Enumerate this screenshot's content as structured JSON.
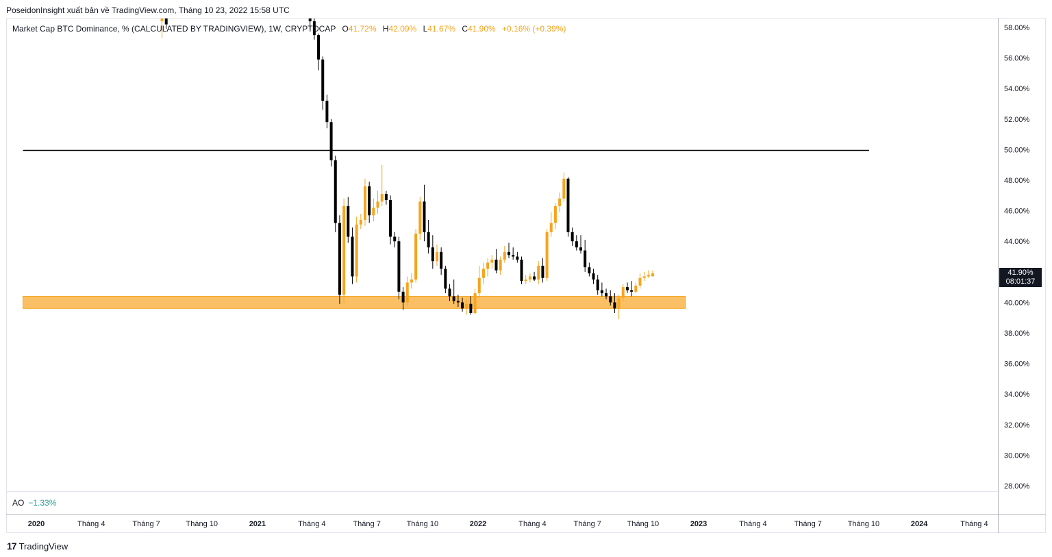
{
  "header": {
    "publisher": "PoseidonInsight xuất bản về TradingView.com, Tháng 10 23, 2022 15:58 UTC"
  },
  "legend": {
    "name": "Market Cap BTC Dominance, % (CALCULATED BY TRADINGVIEW), 1W, CRYPTOCAP",
    "o_label": "O",
    "o_value": "41.72%",
    "h_label": "H",
    "h_value": "42.09%",
    "l_label": "L",
    "l_value": "41.67%",
    "c_label": "C",
    "c_value": "41.90%",
    "change": "+0.16% (+0.39%)"
  },
  "indicator": {
    "name": "AO",
    "value": "−1.33%"
  },
  "price_tag": {
    "price": "41.90%",
    "countdown": "08:01:37"
  },
  "brand": {
    "logo": "17",
    "name": "TradingView"
  },
  "colors": {
    "up": "#f7a41e",
    "down": "#000000",
    "zone": "#fbc065",
    "line": "#000000"
  },
  "chart_data": {
    "type": "candlestick",
    "y_axis_labels": [
      "58.00%",
      "56.00%",
      "54.00%",
      "52.00%",
      "50.00%",
      "48.00%",
      "46.00%",
      "44.00%",
      "42.00%",
      "40.00%",
      "38.00%",
      "36.00%",
      "34.00%",
      "32.00%",
      "30.00%",
      "28.00%"
    ],
    "ylim": [
      27.6,
      58.8
    ],
    "x_axis_labels": [
      {
        "label": "2020",
        "bold": true,
        "date": "2020-01-01"
      },
      {
        "label": "Tháng 4",
        "bold": false,
        "date": "2020-04-01"
      },
      {
        "label": "Tháng 7",
        "bold": false,
        "date": "2020-07-01"
      },
      {
        "label": "Tháng 10",
        "bold": false,
        "date": "2020-10-01"
      },
      {
        "label": "2021",
        "bold": true,
        "date": "2021-01-01"
      },
      {
        "label": "Tháng 4",
        "bold": false,
        "date": "2021-04-01"
      },
      {
        "label": "Tháng 7",
        "bold": false,
        "date": "2021-07-01"
      },
      {
        "label": "Tháng 10",
        "bold": false,
        "date": "2021-10-01"
      },
      {
        "label": "2022",
        "bold": true,
        "date": "2022-01-01"
      },
      {
        "label": "Tháng 4",
        "bold": false,
        "date": "2022-04-01"
      },
      {
        "label": "Tháng 7",
        "bold": false,
        "date": "2022-07-01"
      },
      {
        "label": "Tháng 10",
        "bold": false,
        "date": "2022-10-01"
      },
      {
        "label": "2023",
        "bold": true,
        "date": "2023-01-01"
      },
      {
        "label": "Tháng 4",
        "bold": false,
        "date": "2023-04-01"
      },
      {
        "label": "Tháng 7",
        "bold": false,
        "date": "2023-07-01"
      },
      {
        "label": "Tháng 10",
        "bold": false,
        "date": "2023-10-01"
      },
      {
        "label": "2024",
        "bold": true,
        "date": "2024-01-01"
      },
      {
        "label": "Tháng 4",
        "bold": false,
        "date": "2024-04-01"
      }
    ],
    "horizontal_line": {
      "value": 49.95,
      "from": "2019-12-10",
      "to": "2023-10-10"
    },
    "support_zone": {
      "low": 39.6,
      "high": 40.4,
      "from": "2019-12-10",
      "to": "2022-12-10"
    },
    "candles": [
      {
        "date": "2020-07-27",
        "o": 58.4,
        "h": 58.8,
        "l": 57.3,
        "c": 58.6
      },
      {
        "date": "2020-08-03",
        "o": 58.6,
        "h": 58.8,
        "l": 57.9,
        "c": 58.2
      },
      {
        "date": "2021-03-29",
        "o": 58.8,
        "h": 58.8,
        "l": 57.9,
        "c": 58.4
      },
      {
        "date": "2021-04-05",
        "o": 58.4,
        "h": 58.6,
        "l": 57.2,
        "c": 57.5
      },
      {
        "date": "2021-04-12",
        "o": 57.5,
        "h": 57.6,
        "l": 55.2,
        "c": 55.9
      },
      {
        "date": "2021-04-19",
        "o": 55.9,
        "h": 56.1,
        "l": 52.6,
        "c": 53.2
      },
      {
        "date": "2021-04-26",
        "o": 53.2,
        "h": 53.6,
        "l": 51.4,
        "c": 51.8
      },
      {
        "date": "2021-05-03",
        "o": 51.8,
        "h": 52.0,
        "l": 48.9,
        "c": 49.3
      },
      {
        "date": "2021-05-10",
        "o": 49.3,
        "h": 49.6,
        "l": 44.6,
        "c": 45.2
      },
      {
        "date": "2021-05-17",
        "o": 45.2,
        "h": 45.7,
        "l": 39.9,
        "c": 40.5
      },
      {
        "date": "2021-05-24",
        "o": 40.5,
        "h": 46.8,
        "l": 39.9,
        "c": 46.3
      },
      {
        "date": "2021-05-31",
        "o": 46.3,
        "h": 46.9,
        "l": 43.9,
        "c": 44.3
      },
      {
        "date": "2021-06-07",
        "o": 44.3,
        "h": 44.9,
        "l": 41.2,
        "c": 41.7
      },
      {
        "date": "2021-06-14",
        "o": 41.7,
        "h": 45.6,
        "l": 41.3,
        "c": 45.1
      },
      {
        "date": "2021-06-21",
        "o": 45.1,
        "h": 45.8,
        "l": 44.8,
        "c": 45.4
      },
      {
        "date": "2021-06-28",
        "o": 45.4,
        "h": 48.1,
        "l": 45.0,
        "c": 47.6
      },
      {
        "date": "2021-07-05",
        "o": 47.6,
        "h": 47.9,
        "l": 45.2,
        "c": 45.7
      },
      {
        "date": "2021-07-12",
        "o": 45.7,
        "h": 46.8,
        "l": 45.3,
        "c": 46.2
      },
      {
        "date": "2021-07-19",
        "o": 46.2,
        "h": 47.3,
        "l": 45.8,
        "c": 46.6
      },
      {
        "date": "2021-07-26",
        "o": 46.6,
        "h": 49.0,
        "l": 46.3,
        "c": 47.1
      },
      {
        "date": "2021-08-02",
        "o": 47.1,
        "h": 47.3,
        "l": 46.4,
        "c": 46.7
      },
      {
        "date": "2021-08-09",
        "o": 46.7,
        "h": 47.0,
        "l": 43.8,
        "c": 44.3
      },
      {
        "date": "2021-08-16",
        "o": 44.3,
        "h": 44.6,
        "l": 43.6,
        "c": 44.0
      },
      {
        "date": "2021-08-23",
        "o": 44.0,
        "h": 44.3,
        "l": 40.2,
        "c": 40.7
      },
      {
        "date": "2021-08-30",
        "o": 40.7,
        "h": 41.0,
        "l": 39.5,
        "c": 40.0
      },
      {
        "date": "2021-09-06",
        "o": 40.0,
        "h": 41.7,
        "l": 39.8,
        "c": 41.3
      },
      {
        "date": "2021-09-13",
        "o": 41.3,
        "h": 41.9,
        "l": 40.9,
        "c": 41.5
      },
      {
        "date": "2021-09-20",
        "o": 41.5,
        "h": 44.8,
        "l": 41.3,
        "c": 44.5
      },
      {
        "date": "2021-09-27",
        "o": 44.5,
        "h": 46.9,
        "l": 44.1,
        "c": 46.6
      },
      {
        "date": "2021-10-04",
        "o": 46.6,
        "h": 47.7,
        "l": 44.0,
        "c": 44.6
      },
      {
        "date": "2021-10-11",
        "o": 44.6,
        "h": 45.4,
        "l": 43.2,
        "c": 43.6
      },
      {
        "date": "2021-10-18",
        "o": 43.6,
        "h": 44.4,
        "l": 42.2,
        "c": 42.7
      },
      {
        "date": "2021-10-25",
        "o": 42.7,
        "h": 43.8,
        "l": 42.4,
        "c": 43.3
      },
      {
        "date": "2021-11-01",
        "o": 43.3,
        "h": 43.6,
        "l": 41.8,
        "c": 42.2
      },
      {
        "date": "2021-11-08",
        "o": 42.2,
        "h": 42.4,
        "l": 40.6,
        "c": 40.9
      },
      {
        "date": "2021-11-15",
        "o": 40.9,
        "h": 41.2,
        "l": 40.1,
        "c": 40.4
      },
      {
        "date": "2021-11-22",
        "o": 40.4,
        "h": 41.5,
        "l": 39.9,
        "c": 40.1
      },
      {
        "date": "2021-11-29",
        "o": 40.1,
        "h": 40.5,
        "l": 39.7,
        "c": 40.0
      },
      {
        "date": "2021-12-06",
        "o": 40.0,
        "h": 40.3,
        "l": 39.4,
        "c": 39.6
      },
      {
        "date": "2021-12-13",
        "o": 39.6,
        "h": 40.2,
        "l": 39.2,
        "c": 39.9
      },
      {
        "date": "2021-12-20",
        "o": 39.9,
        "h": 40.4,
        "l": 39.2,
        "c": 39.3
      },
      {
        "date": "2021-12-27",
        "o": 39.3,
        "h": 40.9,
        "l": 39.2,
        "c": 40.6
      },
      {
        "date": "2022-01-03",
        "o": 40.6,
        "h": 42.4,
        "l": 40.3,
        "c": 41.6
      },
      {
        "date": "2022-01-10",
        "o": 41.6,
        "h": 42.6,
        "l": 41.2,
        "c": 42.2
      },
      {
        "date": "2022-01-17",
        "o": 42.2,
        "h": 42.9,
        "l": 41.7,
        "c": 42.6
      },
      {
        "date": "2022-01-24",
        "o": 42.6,
        "h": 43.1,
        "l": 42.2,
        "c": 42.8
      },
      {
        "date": "2022-01-31",
        "o": 42.8,
        "h": 43.5,
        "l": 41.9,
        "c": 42.1
      },
      {
        "date": "2022-02-07",
        "o": 42.1,
        "h": 43.0,
        "l": 41.8,
        "c": 42.8
      },
      {
        "date": "2022-02-14",
        "o": 42.8,
        "h": 43.7,
        "l": 42.6,
        "c": 43.3
      },
      {
        "date": "2022-02-21",
        "o": 43.3,
        "h": 43.9,
        "l": 42.9,
        "c": 43.1
      },
      {
        "date": "2022-02-28",
        "o": 43.1,
        "h": 43.6,
        "l": 42.8,
        "c": 43.0
      },
      {
        "date": "2022-03-07",
        "o": 43.0,
        "h": 43.3,
        "l": 42.6,
        "c": 42.8
      },
      {
        "date": "2022-03-14",
        "o": 42.8,
        "h": 43.0,
        "l": 41.2,
        "c": 41.4
      },
      {
        "date": "2022-03-21",
        "o": 41.4,
        "h": 41.8,
        "l": 41.2,
        "c": 41.5
      },
      {
        "date": "2022-03-28",
        "o": 41.5,
        "h": 41.9,
        "l": 41.3,
        "c": 41.7
      },
      {
        "date": "2022-04-04",
        "o": 41.7,
        "h": 42.0,
        "l": 41.4,
        "c": 41.5
      },
      {
        "date": "2022-04-11",
        "o": 41.5,
        "h": 42.7,
        "l": 41.2,
        "c": 42.4
      },
      {
        "date": "2022-04-18",
        "o": 42.4,
        "h": 42.9,
        "l": 41.3,
        "c": 41.6
      },
      {
        "date": "2022-04-25",
        "o": 41.6,
        "h": 44.8,
        "l": 41.4,
        "c": 44.6
      },
      {
        "date": "2022-05-02",
        "o": 44.6,
        "h": 45.9,
        "l": 44.3,
        "c": 45.2
      },
      {
        "date": "2022-05-09",
        "o": 45.2,
        "h": 46.5,
        "l": 44.8,
        "c": 46.3
      },
      {
        "date": "2022-05-16",
        "o": 46.3,
        "h": 47.2,
        "l": 45.9,
        "c": 46.8
      },
      {
        "date": "2022-05-23",
        "o": 46.8,
        "h": 48.5,
        "l": 46.6,
        "c": 48.1
      },
      {
        "date": "2022-05-30",
        "o": 48.1,
        "h": 48.2,
        "l": 44.3,
        "c": 44.6
      },
      {
        "date": "2022-06-06",
        "o": 44.6,
        "h": 44.9,
        "l": 43.7,
        "c": 44.0
      },
      {
        "date": "2022-06-13",
        "o": 44.0,
        "h": 44.4,
        "l": 43.4,
        "c": 43.6
      },
      {
        "date": "2022-06-20",
        "o": 43.6,
        "h": 44.4,
        "l": 43.2,
        "c": 43.4
      },
      {
        "date": "2022-06-27",
        "o": 43.4,
        "h": 44.1,
        "l": 42.0,
        "c": 42.3
      },
      {
        "date": "2022-07-04",
        "o": 42.3,
        "h": 42.6,
        "l": 41.7,
        "c": 41.9
      },
      {
        "date": "2022-07-11",
        "o": 41.9,
        "h": 42.2,
        "l": 41.2,
        "c": 41.5
      },
      {
        "date": "2022-07-18",
        "o": 41.5,
        "h": 41.8,
        "l": 40.5,
        "c": 40.8
      },
      {
        "date": "2022-07-25",
        "o": 40.8,
        "h": 41.3,
        "l": 40.4,
        "c": 40.6
      },
      {
        "date": "2022-08-01",
        "o": 40.6,
        "h": 40.9,
        "l": 40.2,
        "c": 40.4
      },
      {
        "date": "2022-08-08",
        "o": 40.4,
        "h": 40.8,
        "l": 39.8,
        "c": 40.0
      },
      {
        "date": "2022-08-15",
        "o": 40.0,
        "h": 40.6,
        "l": 39.3,
        "c": 39.6
      },
      {
        "date": "2022-08-22",
        "o": 39.6,
        "h": 40.5,
        "l": 38.9,
        "c": 40.3
      },
      {
        "date": "2022-08-29",
        "o": 40.3,
        "h": 41.2,
        "l": 40.1,
        "c": 41.0
      },
      {
        "date": "2022-09-05",
        "o": 41.0,
        "h": 41.3,
        "l": 40.6,
        "c": 40.8
      },
      {
        "date": "2022-09-12",
        "o": 40.8,
        "h": 41.4,
        "l": 40.4,
        "c": 40.7
      },
      {
        "date": "2022-09-19",
        "o": 40.7,
        "h": 41.3,
        "l": 40.6,
        "c": 41.1
      },
      {
        "date": "2022-09-26",
        "o": 41.1,
        "h": 41.9,
        "l": 40.9,
        "c": 41.6
      },
      {
        "date": "2022-10-03",
        "o": 41.6,
        "h": 42.0,
        "l": 41.4,
        "c": 41.7
      },
      {
        "date": "2022-10-10",
        "o": 41.7,
        "h": 42.1,
        "l": 41.6,
        "c": 41.8
      },
      {
        "date": "2022-10-17",
        "o": 41.72,
        "h": 42.09,
        "l": 41.67,
        "c": 41.9
      }
    ]
  }
}
